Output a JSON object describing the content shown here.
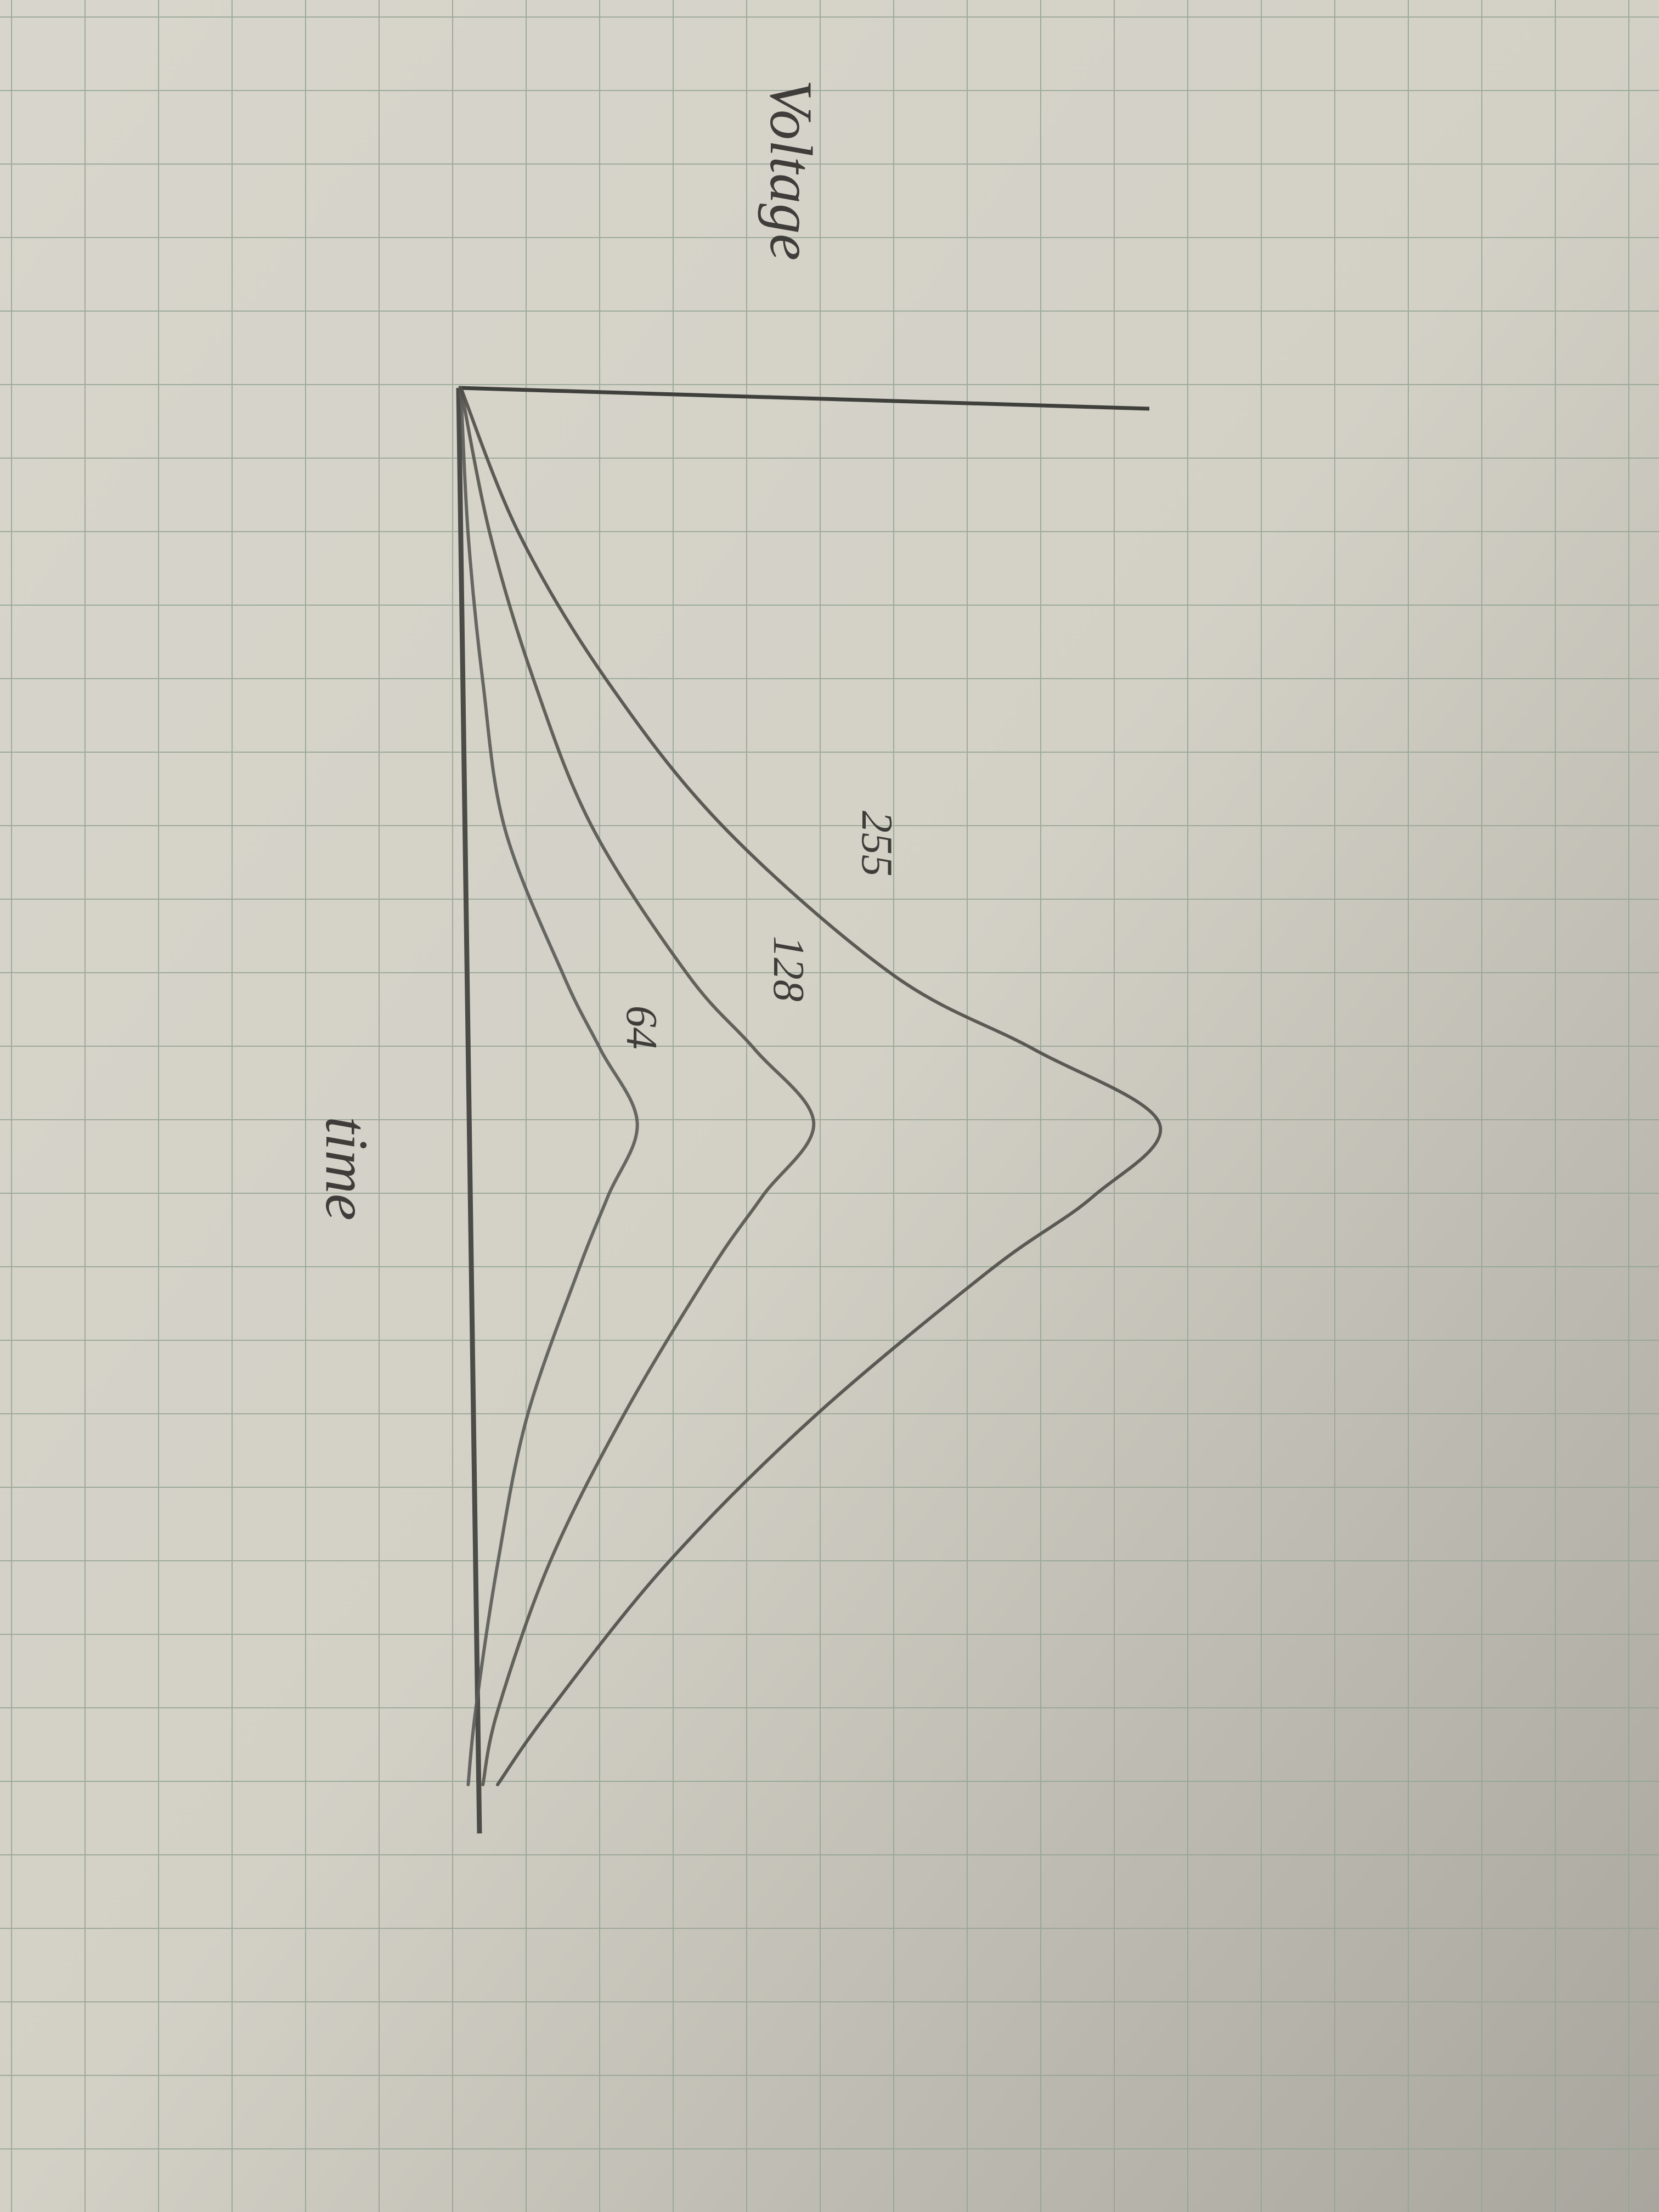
{
  "chart_data": {
    "type": "line",
    "y_label": "Voltage",
    "x_label": "time",
    "x": [
      0,
      2,
      4,
      6,
      8,
      9,
      10,
      11,
      12,
      14,
      16,
      18,
      19
    ],
    "series": [
      {
        "name": "64",
        "color": "#5a5a58",
        "values": [
          0,
          0.1,
          0.3,
          0.6,
          1.4,
          1.9,
          2.4,
          2.0,
          1.6,
          0.9,
          0.5,
          0.2,
          0.1
        ]
      },
      {
        "name": "128",
        "color": "#55554f",
        "values": [
          0,
          0.4,
          1.0,
          1.8,
          3.1,
          4.0,
          4.8,
          4.1,
          3.4,
          2.2,
          1.2,
          0.5,
          0.3
        ]
      },
      {
        "name": "255",
        "color": "#4e4c48",
        "values": [
          0,
          0.8,
          2.0,
          3.6,
          5.9,
          7.8,
          9.5,
          8.6,
          7.2,
          4.8,
          2.8,
          1.2,
          0.5
        ]
      }
    ],
    "xlim": [
      0,
      20
    ],
    "ylim": [
      0,
      10
    ]
  }
}
